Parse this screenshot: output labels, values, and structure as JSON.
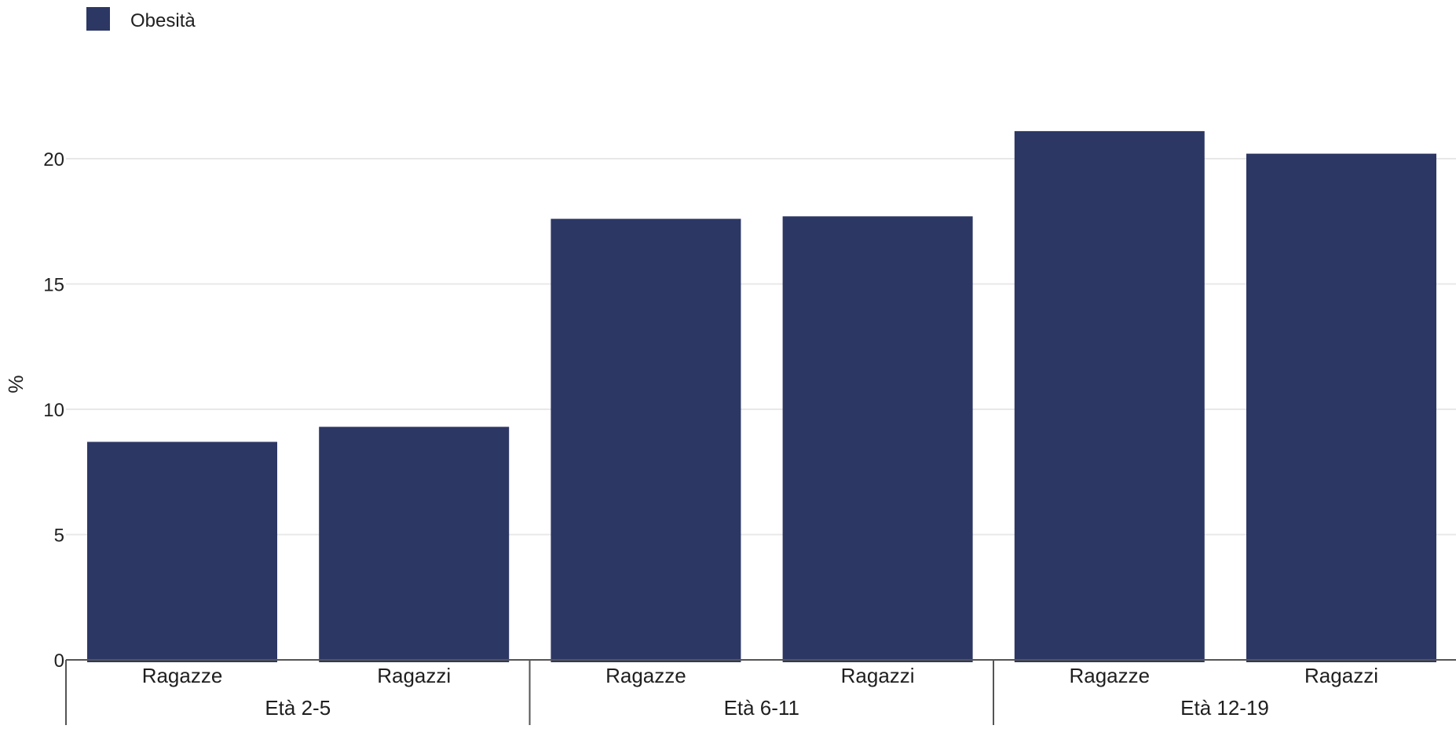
{
  "chart_data": {
    "type": "bar",
    "title": "",
    "xlabel": "",
    "ylabel": "%",
    "ylim": [
      0,
      23
    ],
    "yticks": [
      0,
      5,
      10,
      15,
      20
    ],
    "grid": true,
    "legend_position": "top-left",
    "groups": [
      {
        "label": "Età 2-5",
        "categories": [
          "Ragazze",
          "Ragazzi"
        ]
      },
      {
        "label": "Età 6-11",
        "categories": [
          "Ragazze",
          "Ragazzi"
        ]
      },
      {
        "label": "Età 12-19",
        "categories": [
          "Ragazze",
          "Ragazzi"
        ]
      }
    ],
    "categories": [
      "Ragazze",
      "Ragazzi",
      "Ragazze",
      "Ragazzi",
      "Ragazze",
      "Ragazzi"
    ],
    "series": [
      {
        "name": "Obesità",
        "color": "#2c3764",
        "values": [
          8.7,
          9.3,
          17.6,
          17.7,
          21.1,
          20.2
        ]
      }
    ]
  },
  "colors": {
    "bar": "#2c3764",
    "grid": "#e8e8e8",
    "axis": "#555555",
    "text": "#1f1f1f"
  }
}
